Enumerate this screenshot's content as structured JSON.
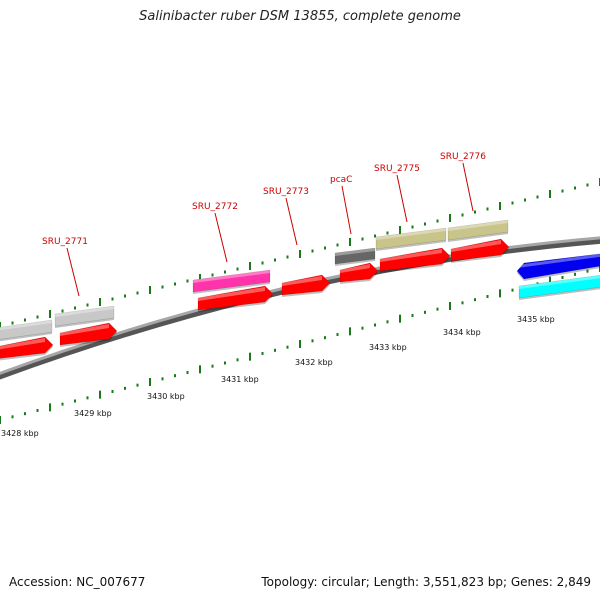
{
  "title": "Salinibacter ruber DSM 13855, complete genome",
  "footer": {
    "accession": "Accession: NC_007677",
    "summary": "Topology: circular; Length: 3,551,823 bp; Genes: 2,849"
  },
  "colors": {
    "gene_label": "#cc0000",
    "tick": "#1a7a1a",
    "backbone": "#8a8a8a",
    "cds": "#ff0000",
    "gray_gene": "#c8c8c8",
    "magenta_gene": "#ff33aa",
    "dark_gene": "#666666",
    "olive_gene": "#c8c48a",
    "blue_gene": "#0000ee",
    "cyan_gene": "#00ffff"
  },
  "scale_labels": [
    {
      "kbp": 3428,
      "text": "3428 kbp"
    },
    {
      "kbp": 3429,
      "text": "3429 kbp"
    },
    {
      "kbp": 3430,
      "text": "3430 kbp"
    },
    {
      "kbp": 3431,
      "text": "3431 kbp"
    },
    {
      "kbp": 3432,
      "text": "3432 kbp"
    },
    {
      "kbp": 3433,
      "text": "3433 kbp"
    },
    {
      "kbp": 3434,
      "text": "3434 kbp"
    },
    {
      "kbp": 3435,
      "text": "3435 kbp"
    }
  ],
  "gene_labels": [
    {
      "text": "SRU_2771"
    },
    {
      "text": "SRU_2772"
    },
    {
      "text": "SRU_2773"
    },
    {
      "text": "pcaC"
    },
    {
      "text": "SRU_2775"
    },
    {
      "text": "SRU_2776"
    }
  ],
  "features": [
    {
      "name": "gray-gene-1",
      "color_key": "gray_gene"
    },
    {
      "name": "gray-gene-2",
      "color_key": "gray_gene"
    },
    {
      "name": "magenta-gene",
      "color_key": "magenta_gene"
    },
    {
      "name": "dark-gene",
      "color_key": "dark_gene"
    },
    {
      "name": "olive-gene-1",
      "color_key": "olive_gene"
    },
    {
      "name": "olive-gene-2",
      "color_key": "olive_gene"
    },
    {
      "name": "blue-gene",
      "color_key": "blue_gene"
    },
    {
      "name": "cyan-gene",
      "color_key": "cyan_gene"
    },
    {
      "name": "cds-1",
      "color_key": "cds"
    },
    {
      "name": "cds-2",
      "color_key": "cds"
    },
    {
      "name": "cds-3",
      "color_key": "cds"
    },
    {
      "name": "cds-4",
      "color_key": "cds"
    },
    {
      "name": "cds-5",
      "color_key": "cds"
    },
    {
      "name": "cds-6",
      "color_key": "cds"
    },
    {
      "name": "cds-7",
      "color_key": "cds"
    }
  ]
}
